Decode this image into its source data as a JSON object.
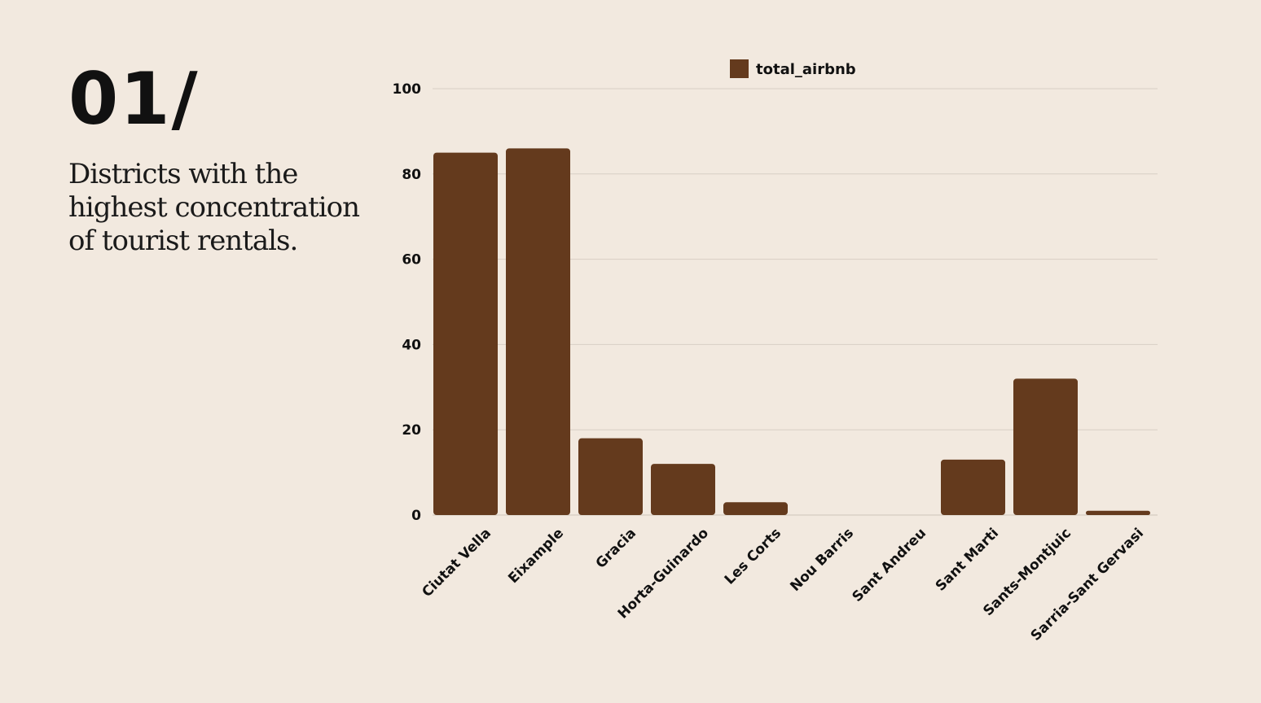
{
  "slide": {
    "number": "01/",
    "headline": "Districts with the highest concentration of tourist rentals."
  },
  "colors": {
    "background": "#f2e9df",
    "bar": "#643a1d",
    "gridline": "#d8cfc5",
    "text": "#111111"
  },
  "chart_data": {
    "type": "bar",
    "categories": [
      "Ciutat Vella",
      "Eixample",
      "Gracia",
      "Horta-Guinardo",
      "Les Corts",
      "Nou Barris",
      "Sant Andreu",
      "Sant Marti",
      "Sants-Montjuic",
      "Sarria-Sant Gervasi"
    ],
    "series": [
      {
        "name": "total_airbnb",
        "values": [
          85,
          86,
          18,
          12,
          3,
          0,
          0,
          13,
          32,
          1
        ]
      }
    ],
    "ylim": [
      0,
      100
    ],
    "yticks": [
      0,
      20,
      40,
      60,
      80,
      100
    ],
    "grid": true,
    "legend": "top-center"
  }
}
